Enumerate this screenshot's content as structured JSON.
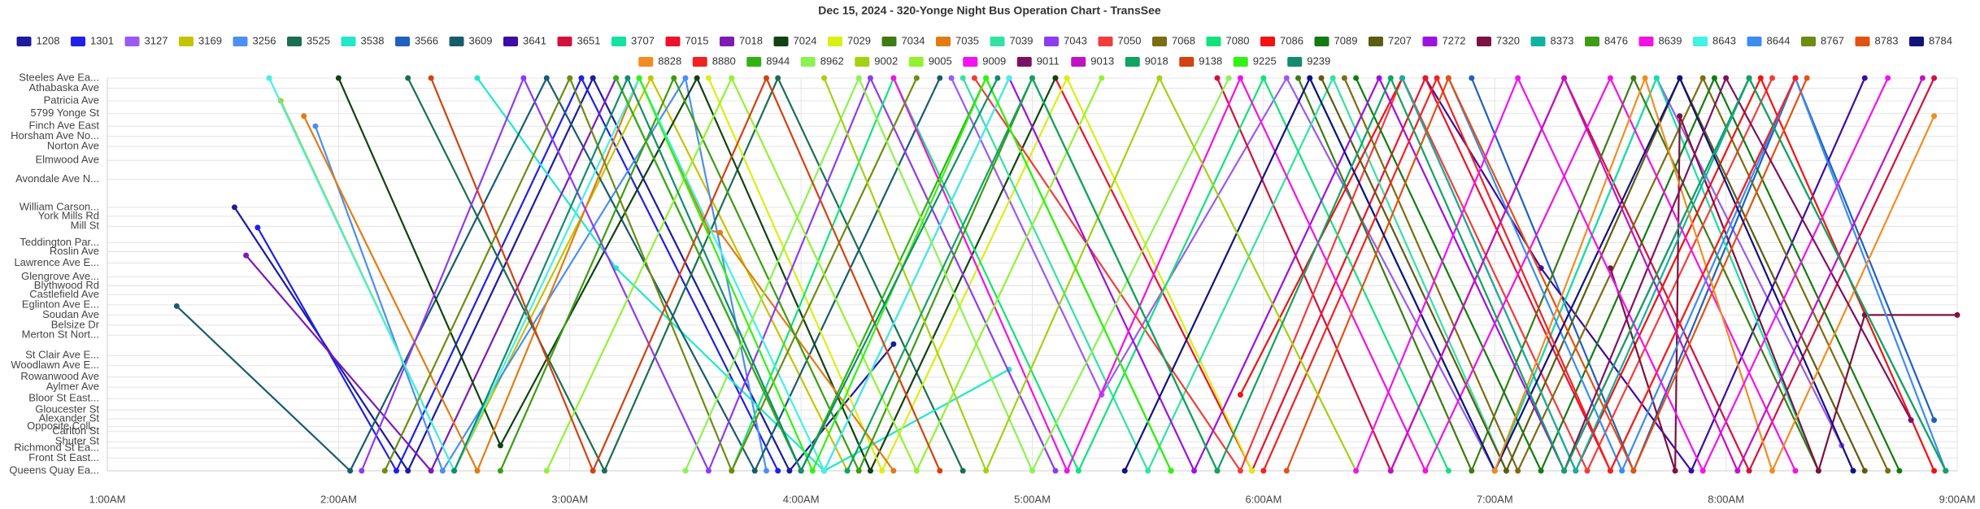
{
  "chart_data": {
    "type": "line",
    "title": "Dec 15, 2024 - 320-Yonge Night Bus Operation Chart - TransSee",
    "xlim": [
      1,
      9
    ],
    "xticks": [
      {
        "value": 1,
        "label": "1:00AM"
      },
      {
        "value": 2,
        "label": "2:00AM"
      },
      {
        "value": 3,
        "label": "3:00AM"
      },
      {
        "value": 4,
        "label": "4:00AM"
      },
      {
        "value": 5,
        "label": "5:00AM"
      },
      {
        "value": 6,
        "label": "6:00AM"
      },
      {
        "value": 7,
        "label": "7:00AM"
      },
      {
        "value": 8,
        "label": "8:00AM"
      },
      {
        "value": 9,
        "label": "9:00AM"
      }
    ],
    "ylim": [
      0,
      15.5
    ],
    "yticks": [
      {
        "value": 15.5,
        "label": "Steeles Ave Ea..."
      },
      {
        "value": 15.1,
        "label": "Athabaska Ave"
      },
      {
        "value": 14.6,
        "label": "Patricia Ave"
      },
      {
        "value": 14.1,
        "label": "5799 Yonge St"
      },
      {
        "value": 13.6,
        "label": "Finch Ave East"
      },
      {
        "value": 13.2,
        "label": "Horsham Ave No..."
      },
      {
        "value": 12.8,
        "label": "Norton Ave"
      },
      {
        "value": 12.25,
        "label": "Elmwood Ave"
      },
      {
        "value": 11.5,
        "label": "Avondale Ave N..."
      },
      {
        "value": 10.4,
        "label": "William Carson..."
      },
      {
        "value": 10.05,
        "label": "York Mills Rd"
      },
      {
        "value": 9.65,
        "label": "Mill St"
      },
      {
        "value": 9.0,
        "label": "Teddington Par..."
      },
      {
        "value": 8.65,
        "label": "Roslin Ave"
      },
      {
        "value": 8.2,
        "label": "Lawrence Ave E..."
      },
      {
        "value": 7.65,
        "label": "Glengrove Ave..."
      },
      {
        "value": 7.3,
        "label": "Blythwood Rd"
      },
      {
        "value": 6.95,
        "label": "Castlefield Ave"
      },
      {
        "value": 6.55,
        "label": "Eglinton Ave E..."
      },
      {
        "value": 6.15,
        "label": "Soudan Ave"
      },
      {
        "value": 5.75,
        "label": "Belsize Dr"
      },
      {
        "value": 5.35,
        "label": "Merton St Nort..."
      },
      {
        "value": 4.55,
        "label": "St Clair Ave E..."
      },
      {
        "value": 4.15,
        "label": "Woodlawn Ave E..."
      },
      {
        "value": 3.7,
        "label": "Rowanwood Ave"
      },
      {
        "value": 3.3,
        "label": "Aylmer Ave"
      },
      {
        "value": 2.85,
        "label": "Bloor St East..."
      },
      {
        "value": 2.4,
        "label": "Gloucester St"
      },
      {
        "value": 2.05,
        "label": "Alexander St"
      },
      {
        "value": 1.75,
        "label": "Opposite Coll..."
      },
      {
        "value": 1.55,
        "label": "Carlton St"
      },
      {
        "value": 1.15,
        "label": "Shuter St"
      },
      {
        "value": 0.9,
        "label": "Richmond St Ea..."
      },
      {
        "value": 0.5,
        "label": "Front St East..."
      },
      {
        "value": 0,
        "label": "Queens Quay Ea..."
      }
    ],
    "grid": true,
    "series": [
      {
        "name": "1208",
        "color": "#1c1c9c",
        "x": [
          1.55,
          2.3,
          3.1,
          3.95,
          4.4
        ],
        "values": [
          10.4,
          0,
          15.5,
          0,
          5
        ]
      },
      {
        "name": "1301",
        "color": "#2020e8",
        "x": [
          1.65,
          2.25,
          3.05,
          3.9
        ],
        "values": [
          9.6,
          0,
          15.5,
          0
        ]
      },
      {
        "name": "3127",
        "color": "#9a5af2",
        "x": [
          4.65,
          5.3,
          6.1,
          7.0,
          7.7,
          8.5
        ],
        "values": [
          15.5,
          3,
          15.5,
          0,
          15.5,
          1
        ]
      },
      {
        "name": "3169",
        "color": "#c4c400",
        "x": [
          1.75,
          2.5,
          3.35,
          4.2
        ],
        "values": [
          14.6,
          0,
          15.5,
          0
        ]
      },
      {
        "name": "3256",
        "color": "#4a8ff2",
        "x": [
          1.9,
          2.45,
          3.5,
          3.85
        ],
        "values": [
          13.6,
          0,
          15.5,
          0
        ]
      },
      {
        "name": "3525",
        "color": "#1b6e52",
        "x": [
          2.3,
          3.15,
          3.9,
          4.7
        ],
        "values": [
          15.5,
          0,
          15.5,
          0
        ]
      },
      {
        "name": "3538",
        "color": "#20e8c8",
        "x": [
          2.6,
          3.2,
          4.1,
          4.9
        ],
        "values": [
          15.5,
          8,
          0,
          4
        ]
      },
      {
        "name": "3566",
        "color": "#2060c0",
        "x": [
          6.9,
          7.6,
          8.3,
          8.9
        ],
        "values": [
          15.5,
          0,
          15.5,
          2
        ]
      },
      {
        "name": "3609",
        "color": "#185c6c",
        "x": [
          1.3,
          2.05,
          2.9,
          3.8,
          4.6
        ],
        "values": [
          6.5,
          0,
          15.5,
          0,
          15.5
        ]
      },
      {
        "name": "3641",
        "color": "#3c0ca4",
        "x": [
          6.7,
          7.2,
          7.85,
          8.6
        ],
        "values": [
          15.5,
          8,
          0,
          15.5
        ]
      },
      {
        "name": "3651",
        "color": "#d2123c",
        "x": [
          5.8,
          6.55,
          7.3,
          8.1,
          8.9
        ],
        "values": [
          15.5,
          0,
          15.5,
          0,
          15.5
        ]
      },
      {
        "name": "3707",
        "color": "#12e2a2",
        "x": [
          6.2,
          7.0,
          7.7,
          8.4
        ],
        "values": [
          15.5,
          0,
          15.5,
          0
        ]
      },
      {
        "name": "7015",
        "color": "#ea122c",
        "x": [
          5.1,
          5.95,
          6.7,
          7.5,
          8.3
        ],
        "values": [
          15.5,
          0,
          15.5,
          0,
          15.5
        ]
      },
      {
        "name": "7018",
        "color": "#7c1cb2",
        "x": [
          1.6,
          2.4,
          3.2,
          4.0
        ],
        "values": [
          8.5,
          0,
          15.5,
          0
        ]
      },
      {
        "name": "7024",
        "color": "#124212",
        "x": [
          2.0,
          2.7,
          3.55,
          4.3,
          5.1
        ],
        "values": [
          15.5,
          1,
          15.5,
          0,
          15.5
        ]
      },
      {
        "name": "7029",
        "color": "#d8f012",
        "x": [
          3.6,
          4.35,
          5.15,
          5.95
        ],
        "values": [
          15.5,
          0,
          15.5,
          0
        ]
      },
      {
        "name": "7034",
        "color": "#3c7c12",
        "x": [
          6.15,
          6.9,
          7.6,
          8.4
        ],
        "values": [
          15.5,
          0,
          15.5,
          0
        ]
      },
      {
        "name": "7035",
        "color": "#e27c12",
        "x": [
          1.85,
          2.6,
          3.3,
          3.6,
          3.65,
          4.4
        ],
        "values": [
          14,
          0,
          15.5,
          9.5,
          9.4,
          0
        ]
      },
      {
        "name": "7039",
        "color": "#32e2a2",
        "x": [
          4.7,
          5.5,
          6.3,
          7.05
        ],
        "values": [
          15.5,
          0,
          15.5,
          0
        ]
      },
      {
        "name": "7043",
        "color": "#8c3cf2",
        "x": [
          2.1,
          2.8,
          3.6,
          4.3,
          5.1
        ],
        "values": [
          0,
          15.5,
          0,
          15.5,
          0
        ]
      },
      {
        "name": "7050",
        "color": "#f23c3c",
        "x": [
          4.75,
          5.9,
          6.6,
          7.4,
          8.2
        ],
        "values": [
          15.5,
          0,
          15.5,
          0,
          15.5
        ]
      },
      {
        "name": "7068",
        "color": "#7c6c12",
        "x": [
          6.35,
          7.1,
          7.9,
          8.7
        ],
        "values": [
          15.5,
          0,
          15.5,
          0
        ]
      },
      {
        "name": "7080",
        "color": "#12e27c",
        "x": [
          3.7,
          4.4,
          5.2,
          6.0,
          6.8
        ],
        "values": [
          0,
          15.5,
          0,
          15.5,
          0
        ]
      },
      {
        "name": "7086",
        "color": "#f21212",
        "x": [
          5.9,
          6.6,
          7.35,
          8.15,
          8.9
        ],
        "values": [
          3,
          15.5,
          0,
          15.5,
          0
        ]
      },
      {
        "name": "7089",
        "color": "#127c12",
        "x": [
          6.4,
          7.2,
          7.95,
          8.75
        ],
        "values": [
          15.5,
          0,
          15.5,
          0
        ]
      },
      {
        "name": "7207",
        "color": "#5c5c12",
        "x": [
          6.25,
          7.05,
          7.8,
          8.6
        ],
        "values": [
          15.5,
          0,
          15.5,
          0
        ]
      },
      {
        "name": "7272",
        "color": "#9c12e2",
        "x": [
          4.1,
          4.9,
          5.7,
          6.5,
          7.3,
          8.1
        ],
        "values": [
          0,
          15.5,
          0,
          15.5,
          0,
          15.5
        ]
      },
      {
        "name": "7320",
        "color": "#7c1242",
        "x": [
          7.5,
          7.78,
          7.8,
          8.4,
          8.6,
          9.0
        ],
        "values": [
          8,
          0,
          14,
          0,
          6.15,
          6.15
        ]
      },
      {
        "name": "8373",
        "color": "#12b2a2",
        "x": [
          6.6,
          7.35,
          8.1,
          8.95
        ],
        "values": [
          15.5,
          0,
          15.5,
          0
        ]
      },
      {
        "name": "8476",
        "color": "#3c9c12",
        "x": [
          2.7,
          3.45,
          4.25,
          5.0,
          5.8
        ],
        "values": [
          0,
          15.5,
          0,
          15.5,
          0
        ]
      },
      {
        "name": "8639",
        "color": "#f212e2",
        "x": [
          4.4,
          5.15,
          5.9,
          6.7,
          7.5,
          8.3
        ],
        "values": [
          15.5,
          0,
          15.5,
          0,
          15.5,
          0
        ]
      },
      {
        "name": "8643",
        "color": "#42f2e2",
        "x": [
          1.7,
          2.5,
          3.3,
          4.1,
          4.9
        ],
        "values": [
          15.5,
          0,
          15.5,
          0,
          15.5
        ]
      },
      {
        "name": "8644",
        "color": "#3c8cf2",
        "x": [
          6.8,
          7.55,
          8.3,
          8.95
        ],
        "values": [
          15.5,
          0,
          15.5,
          0
        ]
      },
      {
        "name": "8767",
        "color": "#6c8c12",
        "x": [
          2.2,
          3.0,
          3.7,
          4.5
        ],
        "values": [
          0,
          15.5,
          0,
          15.5
        ]
      },
      {
        "name": "8783",
        "color": "#e25212",
        "x": [
          6.1,
          6.8,
          7.6,
          8.35
        ],
        "values": [
          0,
          15.5,
          0,
          15.5
        ]
      },
      {
        "name": "8784",
        "color": "#12127c",
        "x": [
          5.4,
          6.2,
          7.0,
          7.8,
          8.55
        ],
        "values": [
          0,
          15.5,
          0,
          15.5,
          0
        ]
      },
      {
        "name": "8828",
        "color": "#f28c22",
        "x": [
          7.0,
          7.65,
          8.2,
          8.9
        ],
        "values": [
          0,
          15.5,
          0,
          14
        ]
      },
      {
        "name": "8880",
        "color": "#f22222",
        "x": [
          6.0,
          6.75,
          7.5,
          8.3
        ],
        "values": [
          0,
          15.5,
          0,
          15.5
        ]
      },
      {
        "name": "8944",
        "color": "#32b212",
        "x": [
          3.2,
          4.0,
          4.8,
          5.6
        ],
        "values": [
          15.5,
          0,
          15.5,
          0
        ]
      },
      {
        "name": "8962",
        "color": "#8cf252",
        "x": [
          3.5,
          4.25,
          5.0,
          5.85
        ],
        "values": [
          0,
          15.5,
          0,
          15.5
        ]
      },
      {
        "name": "9002",
        "color": "#a2d212",
        "x": [
          4.1,
          4.8,
          5.55,
          6.4
        ],
        "values": [
          15.5,
          0,
          15.5,
          0
        ]
      },
      {
        "name": "9005",
        "color": "#92f232",
        "x": [
          2.9,
          3.7,
          4.5,
          5.3
        ],
        "values": [
          0,
          15.5,
          0,
          15.5
        ]
      },
      {
        "name": "9009",
        "color": "#f212f2",
        "x": [
          6.4,
          7.1,
          7.9,
          8.7
        ],
        "values": [
          0,
          15.5,
          0,
          15.5
        ]
      },
      {
        "name": "9011",
        "color": "#7c1262",
        "x": [
          7.3,
          8.0,
          8.8
        ],
        "values": [
          0,
          15.5,
          2
        ]
      },
      {
        "name": "9013",
        "color": "#c212c2",
        "x": [
          6.55,
          7.3,
          8.05,
          8.85
        ],
        "values": [
          0,
          15.5,
          0,
          15.5
        ]
      },
      {
        "name": "9018",
        "color": "#12a262",
        "x": [
          4.2,
          5.0,
          5.8,
          6.55,
          7.3,
          8.1,
          8.95
        ],
        "values": [
          0,
          15.5,
          0,
          15.5,
          0,
          15.5,
          0
        ]
      },
      {
        "name": "9138",
        "color": "#d24212",
        "x": [
          2.4,
          3.1,
          3.85,
          4.6
        ],
        "values": [
          15.5,
          0,
          15.5,
          0
        ]
      },
      {
        "name": "9225",
        "color": "#32f212",
        "x": [
          3.3,
          4.05,
          4.8,
          5.6
        ],
        "values": [
          15.5,
          0,
          15.5,
          0
        ]
      },
      {
        "name": "9239",
        "color": "#128c6c",
        "x": [
          2.5,
          3.25,
          4.0,
          4.85
        ],
        "values": [
          0,
          15.5,
          0,
          15.5
        ]
      }
    ]
  }
}
